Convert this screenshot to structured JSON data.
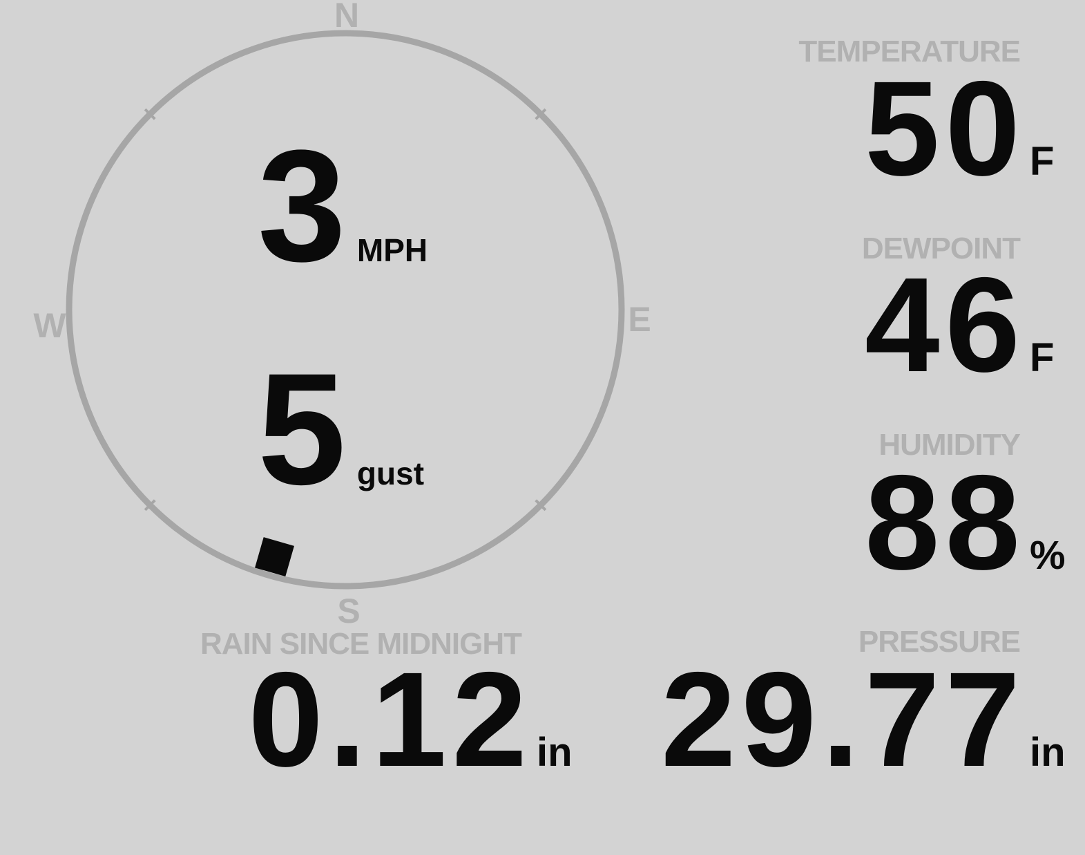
{
  "colors": {
    "background": "#d3d3d3",
    "ring": "#a6a6a6",
    "muted_label": "#b1b1b1",
    "ink": "#0a0a0a"
  },
  "wind": {
    "speed": "3",
    "speed_unit": "MPH",
    "gust": "5",
    "gust_unit": "gust",
    "direction_deg": 196,
    "cardinals": {
      "n": "N",
      "e": "E",
      "s": "S",
      "w": "W"
    }
  },
  "metrics": {
    "temperature": {
      "label": "TEMPERATURE",
      "value": "50",
      "unit": "F"
    },
    "dewpoint": {
      "label": "DEWPOINT",
      "value": "46",
      "unit": "F"
    },
    "humidity": {
      "label": "HUMIDITY",
      "value": "88",
      "unit": "%"
    },
    "rain": {
      "label": "RAIN SINCE MIDNIGHT",
      "value": "0.12",
      "unit": "in"
    },
    "pressure": {
      "label": "PRESSURE",
      "value": "29.77",
      "unit": "in"
    }
  }
}
